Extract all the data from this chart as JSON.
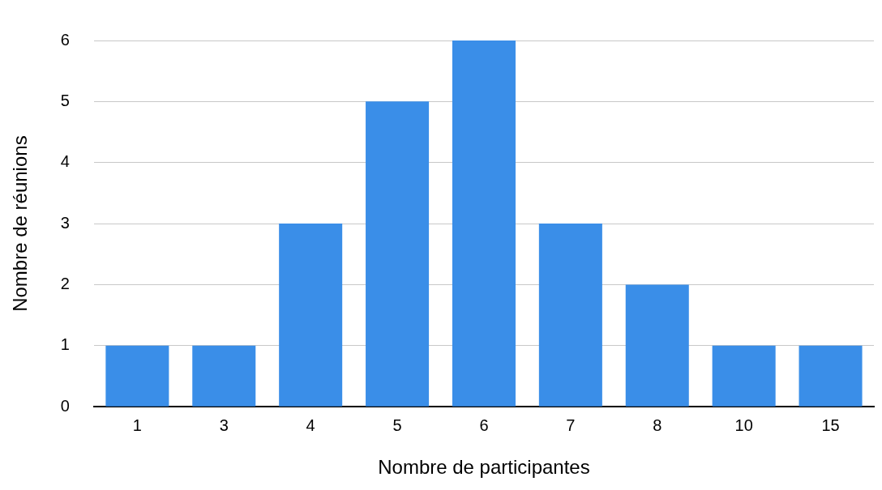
{
  "chart_data": {
    "type": "bar",
    "xlabel": "Nombre de participantes",
    "ylabel": "Nombre de réunions",
    "categories": [
      "1",
      "3",
      "4",
      "5",
      "6",
      "7",
      "8",
      "10",
      "15"
    ],
    "values": [
      1,
      1,
      3,
      5,
      6,
      3,
      2,
      1,
      1
    ],
    "color": "#3a8ee8",
    "ylim": [
      0,
      6
    ],
    "yticks": [
      0,
      1,
      2,
      3,
      4,
      5,
      6
    ],
    "grid": "y"
  }
}
